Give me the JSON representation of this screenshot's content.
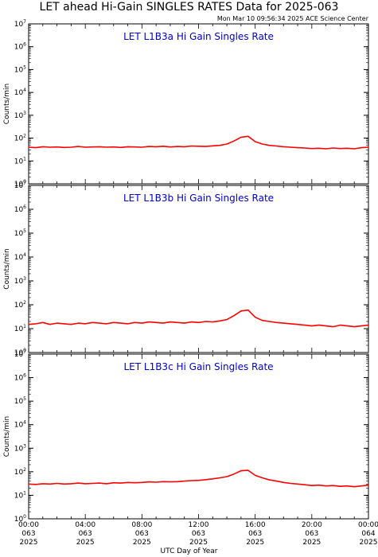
{
  "title": "LET ahead Hi-Gain SINGLES RATES Data for 2025-063",
  "timestamp": "Mon Mar 10 09:56:34 2025 ACE Science Center",
  "xlabel": "UTC Day of Year",
  "colors": {
    "series": "#ff0000",
    "panel_title": "#0000cc",
    "axes": "#000000"
  },
  "chart_data": [
    {
      "type": "line",
      "title": "LET L1B3a Hi Gain Singles Rate",
      "ylabel": "Counts/min",
      "yscale": "log",
      "ylim": [
        1,
        10000000
      ],
      "xlim": [
        0,
        24
      ],
      "x_unit": "hours UTC",
      "y_tick_exponents": [
        0,
        1,
        2,
        3,
        4,
        5,
        6,
        7
      ],
      "series": [
        {
          "x": [
            0,
            0.5,
            1,
            1.5,
            2,
            2.5,
            3,
            3.5,
            4,
            4.5,
            5,
            5.5,
            6,
            6.5,
            7,
            7.5,
            8,
            8.5,
            9,
            9.5,
            10,
            10.5,
            11,
            11.5,
            12,
            12.5,
            13,
            13.5,
            14,
            14.5,
            15,
            15.5,
            16,
            16.5,
            17,
            17.5,
            18,
            18.5,
            19,
            19.5,
            20,
            20.5,
            21,
            21.5,
            22,
            22.5,
            23,
            23.5,
            24
          ],
          "values": [
            40,
            38,
            42,
            40,
            41,
            39,
            40,
            43,
            40,
            41,
            42,
            40,
            41,
            39,
            42,
            41,
            40,
            43,
            42,
            44,
            41,
            43,
            42,
            45,
            44,
            43,
            46,
            48,
            55,
            75,
            110,
            120,
            70,
            55,
            48,
            45,
            42,
            40,
            38,
            37,
            35,
            36,
            34,
            37,
            35,
            36,
            34,
            38,
            40
          ]
        }
      ]
    },
    {
      "type": "line",
      "title": "LET L1B3b Hi Gain Singles Rate",
      "ylabel": "Counts/min",
      "yscale": "log",
      "ylim": [
        1,
        10000000
      ],
      "xlim": [
        0,
        24
      ],
      "x_unit": "hours UTC",
      "y_tick_exponents": [
        0,
        1,
        2,
        3,
        4,
        5,
        6,
        7
      ],
      "series": [
        {
          "x": [
            0,
            0.5,
            1,
            1.5,
            2,
            2.5,
            3,
            3.5,
            4,
            4.5,
            5,
            5.5,
            6,
            6.5,
            7,
            7.5,
            8,
            8.5,
            9,
            9.5,
            10,
            10.5,
            11,
            11.5,
            12,
            12.5,
            13,
            13.5,
            14,
            14.5,
            15,
            15.5,
            16,
            16.5,
            17,
            17.5,
            18,
            18.5,
            19,
            19.5,
            20,
            20.5,
            21,
            21.5,
            22,
            22.5,
            23,
            23.5,
            24
          ],
          "values": [
            15,
            16,
            18,
            15,
            17,
            16,
            15,
            17,
            16,
            18,
            17,
            16,
            18,
            17,
            16,
            18,
            17,
            19,
            18,
            17,
            19,
            18,
            17,
            19,
            18,
            20,
            19,
            21,
            24,
            35,
            55,
            60,
            30,
            22,
            20,
            18,
            17,
            16,
            15,
            14,
            13,
            14,
            13,
            12,
            14,
            13,
            12,
            13,
            14
          ]
        }
      ]
    },
    {
      "type": "line",
      "title": "LET L1B3c Hi Gain Singles Rate",
      "ylabel": "Counts/min",
      "yscale": "log",
      "ylim": [
        1,
        10000000
      ],
      "xlim": [
        0,
        24
      ],
      "x_unit": "hours UTC",
      "y_tick_exponents": [
        0,
        1,
        2,
        3,
        4,
        5,
        6,
        7
      ],
      "series": [
        {
          "x": [
            0,
            0.5,
            1,
            1.5,
            2,
            2.5,
            3,
            3.5,
            4,
            4.5,
            5,
            5.5,
            6,
            6.5,
            7,
            7.5,
            8,
            8.5,
            9,
            9.5,
            10,
            10.5,
            11,
            11.5,
            12,
            12.5,
            13,
            13.5,
            14,
            14.5,
            15,
            15.5,
            16,
            16.5,
            17,
            17.5,
            18,
            18.5,
            19,
            19.5,
            20,
            20.5,
            21,
            21.5,
            22,
            22.5,
            23,
            23.5,
            24
          ],
          "values": [
            30,
            29,
            31,
            30,
            32,
            30,
            31,
            33,
            31,
            32,
            33,
            31,
            34,
            33,
            35,
            34,
            35,
            37,
            36,
            38,
            37,
            38,
            40,
            42,
            43,
            46,
            50,
            55,
            62,
            80,
            110,
            115,
            70,
            55,
            45,
            40,
            35,
            32,
            30,
            28,
            26,
            27,
            25,
            26,
            24,
            25,
            23,
            25,
            27
          ]
        }
      ]
    }
  ],
  "x_ticks": [
    {
      "time": "00:00",
      "doy": "063",
      "year": "2025"
    },
    {
      "time": "04:00",
      "doy": "063",
      "year": "2025"
    },
    {
      "time": "08:00",
      "doy": "063",
      "year": "2025"
    },
    {
      "time": "12:00",
      "doy": "063",
      "year": "2025"
    },
    {
      "time": "16:00",
      "doy": "063",
      "year": "2025"
    },
    {
      "time": "20:00",
      "doy": "063",
      "year": "2025"
    },
    {
      "time": "00:00",
      "doy": "064",
      "year": "2025"
    }
  ]
}
